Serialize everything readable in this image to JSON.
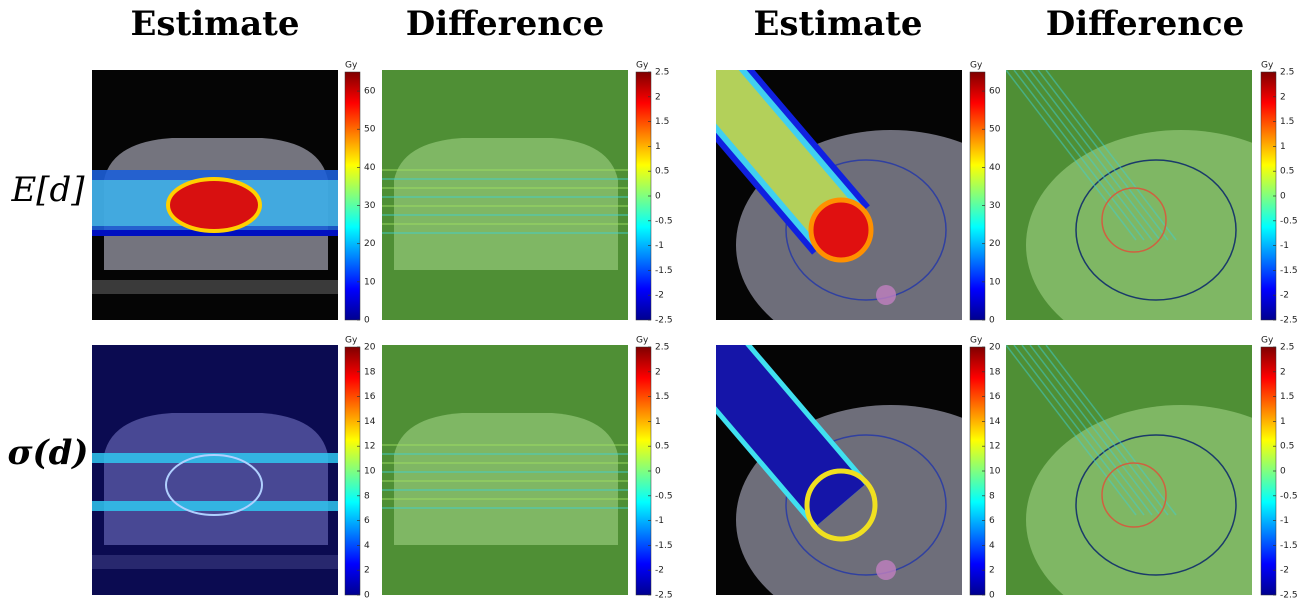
{
  "columns": [
    "Estimate",
    "Difference",
    "Estimate",
    "Difference"
  ],
  "rows": [
    "E[d]",
    "σ(d)"
  ],
  "colorbars": [
    {
      "unit": "Gy",
      "lim": [
        0,
        65
      ],
      "ticks": [
        0,
        10,
        20,
        30,
        40,
        50,
        60
      ]
    },
    {
      "unit": "Gy",
      "lim": [
        -2.5,
        2.5
      ],
      "ticks": [
        -2.5,
        -2,
        -1.5,
        -1,
        -0.5,
        0,
        0.5,
        1,
        1.5,
        2,
        2.5
      ]
    },
    {
      "unit": "Gy",
      "lim": [
        0,
        65
      ],
      "ticks": [
        0,
        10,
        20,
        30,
        40,
        50,
        60
      ]
    },
    {
      "unit": "Gy",
      "lim": [
        -2.5,
        2.5
      ],
      "ticks": [
        -2.5,
        -2,
        -1.5,
        -1,
        -0.5,
        0,
        0.5,
        1,
        1.5,
        2,
        2.5
      ]
    },
    {
      "unit": "Gy",
      "lim": [
        0,
        20
      ],
      "ticks": [
        0,
        2,
        4,
        6,
        8,
        10,
        12,
        14,
        16,
        18,
        20
      ]
    },
    {
      "unit": "Gy",
      "lim": [
        -2.5,
        2.5
      ],
      "ticks": [
        -2.5,
        -2,
        -1.5,
        -1,
        -0.5,
        0,
        0.5,
        1,
        1.5,
        2,
        2.5
      ]
    },
    {
      "unit": "Gy",
      "lim": [
        0,
        20
      ],
      "ticks": [
        0,
        2,
        4,
        6,
        8,
        10,
        12,
        14,
        16,
        18,
        20
      ]
    },
    {
      "unit": "Gy",
      "lim": [
        -2.5,
        2.5
      ],
      "ticks": [
        -2.5,
        -2,
        -1.5,
        -1,
        -0.5,
        0,
        0.5,
        1,
        1.5,
        2,
        2.5
      ]
    }
  ]
}
